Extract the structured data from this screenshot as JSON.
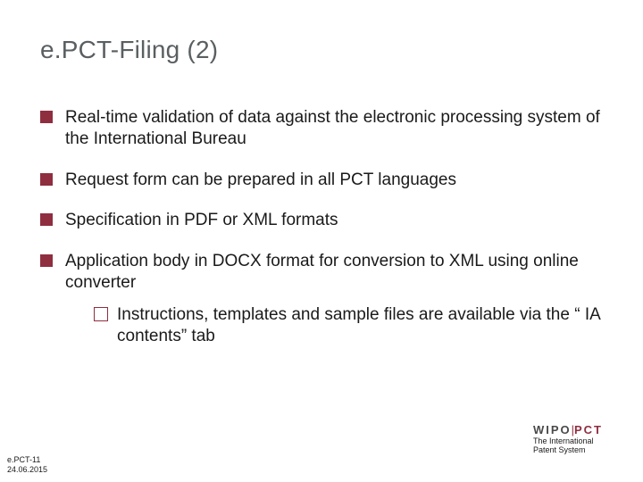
{
  "title": "e.PCT-Filing  (2)",
  "bullets": [
    {
      "text": "Real-time validation of data against the electronic processing system of the International Bureau"
    },
    {
      "text": "Request form can be prepared in all PCT languages"
    },
    {
      "text": "Specification in PDF or XML formats"
    },
    {
      "text": "Application body in DOCX format for conversion to XML using online converter",
      "sub": [
        {
          "text": "Instructions, templates and sample files are available via the “ IA contents” tab"
        }
      ]
    }
  ],
  "footer_left": {
    "line1": "e.PCT-11",
    "line2": "24.06.2015"
  },
  "footer_right": {
    "brand_left": "WIPO",
    "brand_sep": "|",
    "brand_right": "PCT",
    "tagline1": "The International",
    "tagline2": "Patent System"
  },
  "colors": {
    "title": "#5a5f61",
    "bullet_square": "#8f2e3f",
    "text": "#1a1a1a",
    "background": "#ffffff"
  },
  "typography": {
    "title_fontsize": 28,
    "body_fontsize": 19,
    "footer_small_fontsize": 9,
    "brand_fontsize": 13
  }
}
